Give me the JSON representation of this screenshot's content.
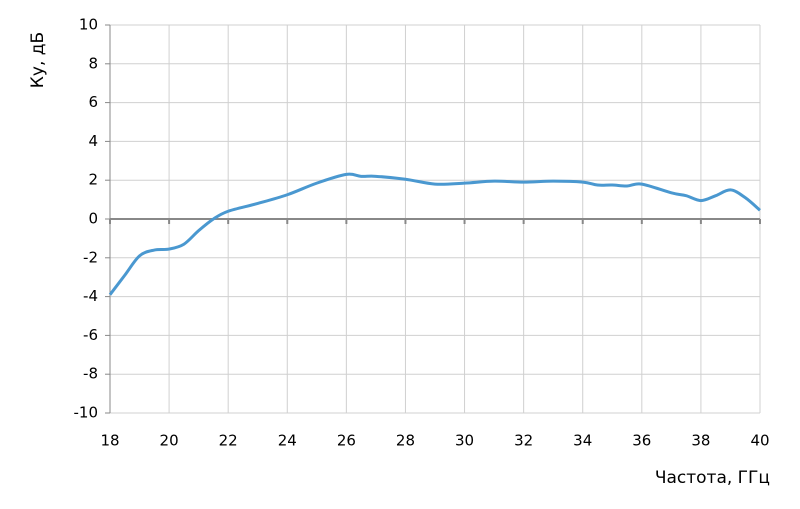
{
  "chart_data": {
    "type": "line",
    "x_label": "Частота, ГГц",
    "y_label": "Ку, дБ",
    "x": [
      18,
      18.5,
      19,
      19.5,
      20,
      20.5,
      21,
      21.5,
      22,
      23,
      24,
      25,
      26,
      26.5,
      27,
      28,
      29,
      30,
      31,
      32,
      33,
      34,
      34.5,
      35,
      35.5,
      36,
      37,
      37.5,
      38,
      38.5,
      39,
      39.5,
      40
    ],
    "series": [
      {
        "color": "#4a98d0",
        "values": [
          -3.9,
          -2.9,
          -1.9,
          -1.6,
          -1.55,
          -1.3,
          -0.6,
          0.0,
          0.4,
          0.8,
          1.25,
          1.85,
          2.3,
          2.2,
          2.2,
          2.05,
          1.8,
          1.85,
          1.95,
          1.9,
          1.95,
          1.9,
          1.75,
          1.75,
          1.7,
          1.8,
          1.35,
          1.2,
          0.95,
          1.2,
          1.5,
          1.1,
          0.45
        ]
      }
    ],
    "xlim": [
      18,
      40
    ],
    "xticks": [
      18,
      20,
      22,
      24,
      26,
      28,
      30,
      32,
      34,
      36,
      38,
      40
    ],
    "ylim": [
      -10,
      10
    ],
    "yticks": [
      -10,
      -8,
      -6,
      -4,
      -2,
      0,
      2,
      4,
      6,
      8,
      10
    ],
    "grid": true
  }
}
